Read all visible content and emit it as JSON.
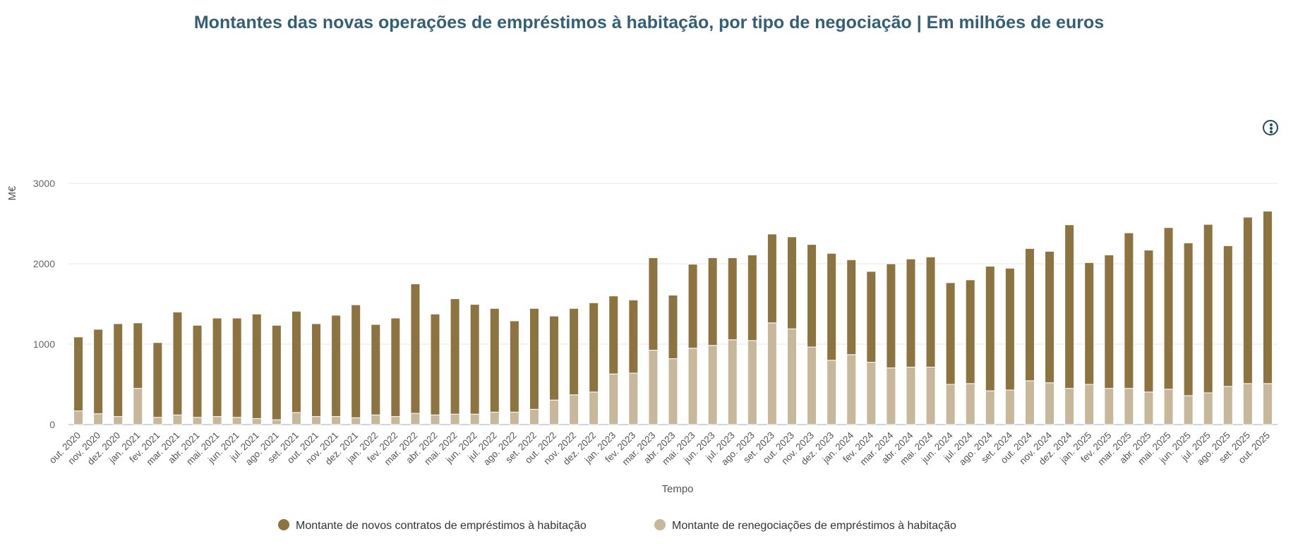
{
  "chart_data": {
    "type": "bar",
    "stacked": true,
    "title": "Montantes das novas operações de empréstimos à habitação, por tipo de negociação | Em milhões de euros",
    "xlabel": "Tempo",
    "ylabel": "M€",
    "ylim": [
      0,
      3000
    ],
    "yticks": [
      0,
      1000,
      2000,
      3000
    ],
    "grid": true,
    "legend_position": "bottom",
    "categories": [
      "out. 2020",
      "nov. 2020",
      "dez. 2020",
      "jan. 2021",
      "fev. 2021",
      "mar. 2021",
      "abr. 2021",
      "mai. 2021",
      "jun. 2021",
      "jul. 2021",
      "ago. 2021",
      "set. 2021",
      "out. 2021",
      "nov. 2021",
      "dez. 2021",
      "jan. 2022",
      "fev. 2022",
      "mar. 2022",
      "abr. 2022",
      "mai. 2022",
      "jun. 2022",
      "jul. 2022",
      "ago. 2022",
      "set. 2022",
      "out. 2022",
      "nov. 2022",
      "dez. 2022",
      "jan. 2023",
      "fev. 2023",
      "mar. 2023",
      "abr. 2023",
      "mai. 2023",
      "jun. 2023",
      "jul. 2023",
      "ago. 2023",
      "set. 2023",
      "out. 2023",
      "nov. 2023",
      "dez. 2023",
      "jan. 2024",
      "fev. 2024",
      "mar. 2024",
      "abr. 2024",
      "mai. 2024",
      "jun. 2024",
      "jul. 2024",
      "ago. 2024",
      "set. 2024",
      "out. 2024",
      "nov. 2024",
      "dez. 2024",
      "jan. 2025",
      "fev. 2025",
      "mar. 2025",
      "abr. 2025",
      "mai. 2025",
      "jun. 2025",
      "jul. 2025",
      "ago. 2025",
      "set. 2025",
      "out. 2025"
    ],
    "series": [
      {
        "name": "Montante de novos contratos de empréstimos à habitação",
        "color": "#8c733f",
        "values": [
          920,
          1050,
          1155,
          815,
          930,
          1280,
          1145,
          1225,
          1235,
          1300,
          1175,
          1260,
          1155,
          1260,
          1405,
          1125,
          1225,
          1610,
          1255,
          1435,
          1365,
          1290,
          1135,
          1255,
          1045,
          1075,
          1110,
          970,
          910,
          1150,
          790,
          1045,
          1090,
          1020,
          1065,
          1105,
          1145,
          1275,
          1330,
          1180,
          1130,
          1295,
          1345,
          1370,
          1265,
          1290,
          1550,
          1515,
          1645,
          1635,
          2035,
          1515,
          1660,
          1935,
          1765,
          2010,
          1900,
          2095,
          1750,
          2070,
          2145
        ]
      },
      {
        "name": "Montante de renegociações de empréstimos à habitação",
        "color": "#c8b89b",
        "values": [
          170,
          135,
          100,
          450,
          90,
          120,
          90,
          100,
          90,
          75,
          60,
          150,
          100,
          100,
          85,
          120,
          100,
          140,
          120,
          130,
          130,
          155,
          155,
          190,
          305,
          370,
          405,
          630,
          640,
          925,
          820,
          950,
          985,
          1055,
          1045,
          1265,
          1190,
          965,
          800,
          870,
          775,
          705,
          715,
          715,
          500,
          510,
          420,
          430,
          545,
          520,
          450,
          500,
          450,
          450,
          405,
          440,
          360,
          395,
          475,
          510,
          510
        ]
      }
    ]
  },
  "ui": {
    "menu_icon": "more-vertical-icon"
  }
}
